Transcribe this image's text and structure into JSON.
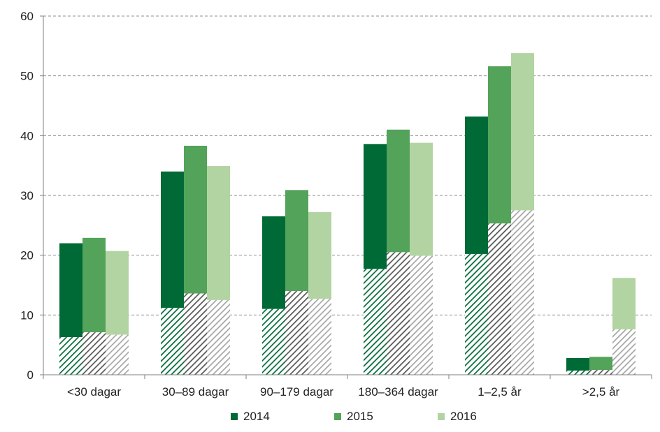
{
  "chart_data": {
    "type": "bar",
    "categories": [
      "<30 dagar",
      "30–89 dagar",
      "90–179 dagar",
      "180–364 dagar",
      "1–2,5 år",
      ">2,5 år"
    ],
    "series": [
      {
        "name": "2014",
        "color": "#006a37",
        "values": [
          22.0,
          34.0,
          26.5,
          38.6,
          43.2,
          2.8
        ],
        "hatched_values": [
          6.3,
          11.2,
          11.0,
          17.7,
          20.2,
          0.7
        ]
      },
      {
        "name": "2015",
        "color": "#54a35a",
        "values": [
          22.9,
          38.3,
          30.9,
          41.0,
          51.6,
          3.0
        ],
        "hatched_values": [
          7.1,
          13.6,
          14.0,
          20.5,
          25.3,
          0.8
        ]
      },
      {
        "name": "2016",
        "color": "#b2d4a3",
        "values": [
          20.7,
          34.9,
          27.2,
          38.8,
          53.8,
          16.2
        ],
        "hatched_values": [
          6.7,
          12.5,
          12.7,
          19.9,
          27.5,
          7.6
        ]
      }
    ],
    "y_ticks": [
      "0",
      "10",
      "20",
      "30",
      "40",
      "50",
      "60"
    ],
    "ylim": [
      0,
      60
    ],
    "grid": true,
    "legend_position": "bottom",
    "title": "",
    "xlabel": "",
    "ylabel": ""
  }
}
